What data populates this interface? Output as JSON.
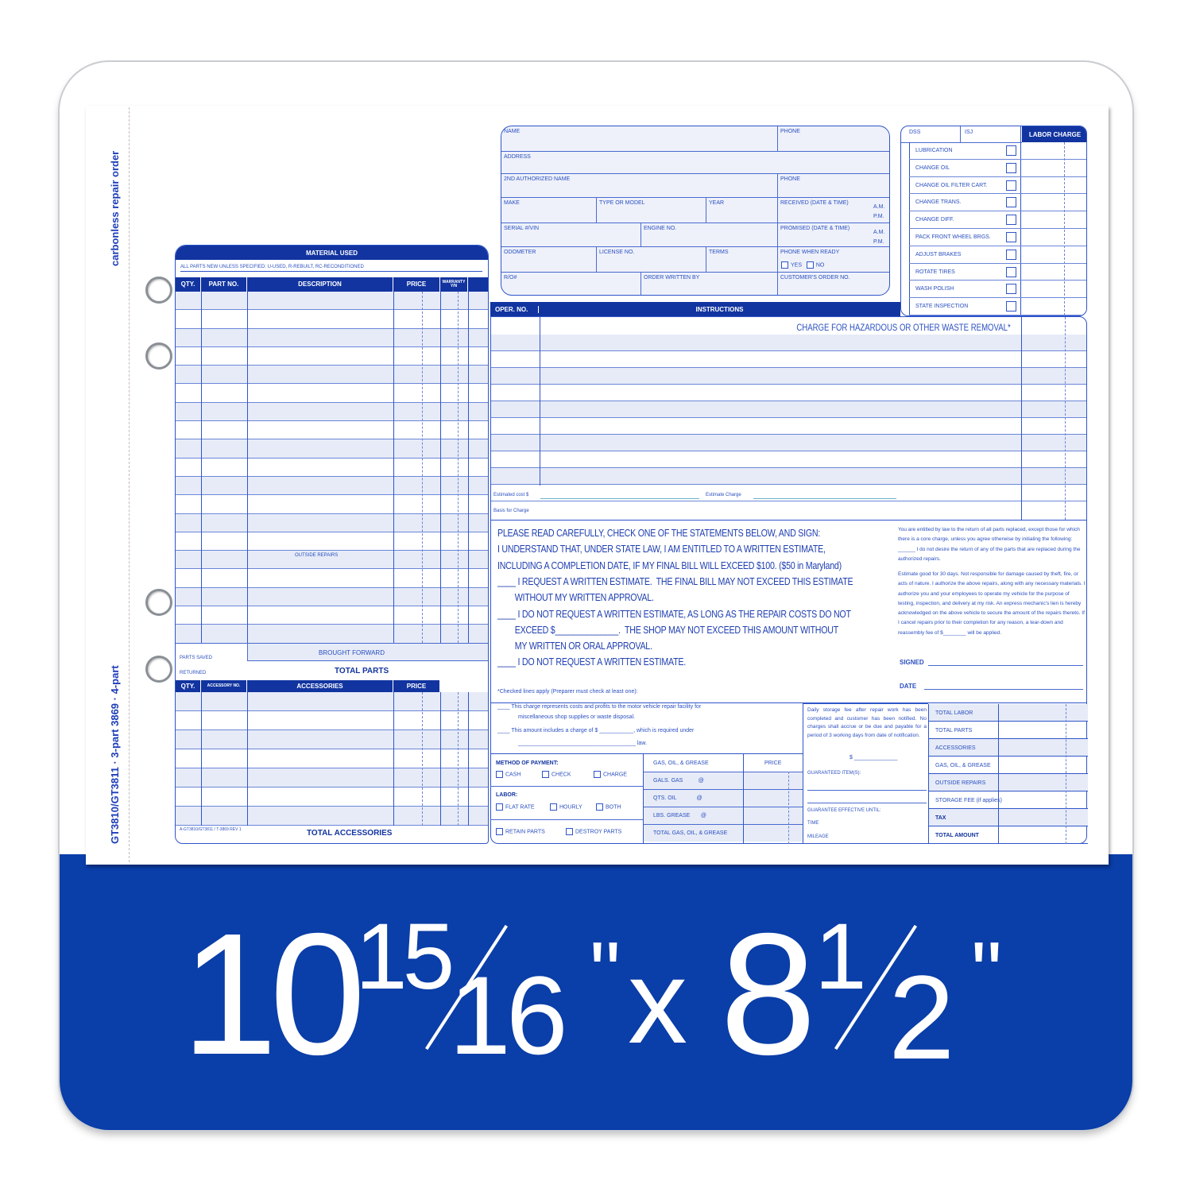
{
  "side_labels": {
    "product": "carbonless repair order",
    "codes": "GT3810/GT3811 · 3-part    3869 · 4-part"
  },
  "customer": {
    "name": "NAME",
    "phone": "PHONE",
    "address": "ADDRESS",
    "second_name": "2ND AUTHORIZED NAME",
    "phone2": "PHONE",
    "make": "MAKE",
    "model": "TYPE OR MODEL",
    "year": "YEAR",
    "received": "RECEIVED (DATE & TIME)",
    "am": "A.M.",
    "pm": "P.M.",
    "serial": "SERIAL #/VIN",
    "engine": "ENGINE NO.",
    "promised": "PROMISED (DATE & TIME)",
    "odometer": "ODOMETER",
    "license": "LICENSE NO.",
    "terms": "TERMS",
    "phone_ready": "PHONE WHEN READY",
    "yes": "YES",
    "no": "NO",
    "ro": "R/O#",
    "written_by": "ORDER WRITTEN BY",
    "customer_order": "CUSTOMER'S ORDER NO."
  },
  "checklist": {
    "top_left": "DSS",
    "top_right": "ISJ",
    "labor_charge": "LABOR CHARGE",
    "items": [
      "LUBRICATION",
      "CHANGE OIL",
      "CHANGE OIL FILTER CART.",
      "CHANGE TRANS.",
      "CHANGE DIFF.",
      "PACK FRONT WHEEL BRGS.",
      "ADJUST BRAKES",
      "ROTATE TIRES",
      "WASH POLISH",
      "STATE INSPECTION"
    ]
  },
  "material": {
    "title": "MATERIAL USED",
    "note": "ALL PARTS NEW UNLESS SPECIFIED: U-USED, R-REBUILT, RC-RECONDITIONED",
    "columns": [
      "QTY.",
      "PART NO.",
      "DESCRIPTION",
      "PRICE",
      "WARRANTY Y/N"
    ],
    "outside_repairs": "OUTSIDE REPAIRS",
    "parts_saved": "PARTS SAVED",
    "returned": "RETURNED",
    "brought_forward": "BROUGHT FORWARD",
    "total_parts": "TOTAL PARTS",
    "acc_columns": [
      "QTY.",
      "ACCESSORY NO.",
      "ACCESSORIES",
      "PRICE"
    ],
    "footnote": "A-GT3810/GT3811 / T-3869 REV 1",
    "total_accessories": "TOTAL ACCESSORIES"
  },
  "instructions": {
    "oper_no": "OPER. NO.",
    "title": "INSTRUCTIONS",
    "hazard": "CHARGE FOR HAZARDOUS OR OTHER WASTE REMOVAL*",
    "estimated_cost": "Estimated cost $",
    "estimate_charge": "Estimate Charge",
    "basis": "Basis for Charge"
  },
  "statement": {
    "lines": [
      "PLEASE READ CAREFULLY, CHECK ONE OF THE STATEMENTS BELOW, AND SIGN:",
      "I UNDERSTAND THAT, UNDER STATE LAW, I AM ENTITLED TO A WRITTEN ESTIMATE,",
      "INCLUDING A COMPLETION DATE, IF MY FINAL BILL WILL EXCEED $100. ($50 in Maryland)",
      "____ I REQUEST A WRITTEN ESTIMATE.  THE FINAL BILL MAY NOT EXCEED THIS ESTIMATE",
      "        WITHOUT MY WRITTEN APPROVAL.",
      "____ I DO NOT REQUEST A WRITTEN ESTIMATE, AS LONG AS THE REPAIR COSTS DO NOT",
      "        EXCEED $______________.  THE SHOP MAY NOT EXCEED THIS AMOUNT WITHOUT",
      "        MY WRITTEN OR ORAL APPROVAL.",
      "____ I DO NOT REQUEST A WRITTEN ESTIMATE."
    ],
    "right_p1": "You are entitled by law to the return of all parts replaced, except those for which there is a core charge, unless you agree otherwise by initialing the following: ______ I do not desire the return of any of the parts that are replaced during the authorized repairs.",
    "right_p2": "Estimate good for 30 days. Not responsible for damage caused by theft, fire, or acts of nature. I authorize the above repairs, along with any necessary materials. I authorize you and your employees to operate my vehicle for the purpose of testing, inspection, and delivery at my risk. An express mechanic's lien is hereby acknowledged on the above vehicle to secure the amount of the repairs thereto. If I cancel repairs prior to their completion for any reason, a tear-down and reassembly fee of $________ will be applied.",
    "signed": "SIGNED",
    "date": "DATE"
  },
  "checked_lines": {
    "intro": "*Checked lines apply (Preparer must check at least one):",
    "l1": "____  This charge represents costs and profits to the motor vehicle repair facility for",
    "l1b": "miscellaneous shop supplies or waste disposal.",
    "l2": "____  This amount includes a charge of $ ___________, which is required under",
    "l2b": "______________________________________ law."
  },
  "payment": {
    "method": "METHOD OF PAYMENT:",
    "cash": "CASH",
    "check": "CHECK",
    "charge": "CHARGE",
    "labor": "LABOR:",
    "flat": "FLAT RATE",
    "hourly": "HOURLY",
    "both": "BOTH",
    "retain": "RETAIN PARTS",
    "destroy": "DESTROY PARTS"
  },
  "gas": {
    "title": "GAS, OIL, & GREASE",
    "price": "PRICE",
    "rows": [
      "GALS. GAS          @",
      "QTS. OIL             @",
      "LBS. GREASE       @",
      "TOTAL GAS, OIL, & GREASE"
    ]
  },
  "storage": {
    "text": "Daily storage fee after repair work has been completed and customer has been notified. No charges shall accrue or be due and payable for a period of 3 working days from date of notification.",
    "dollar": "$ ______________",
    "guarantee": "GUARANTEED ITEM(S):",
    "effective": "GUARANTEE EFFECTIVE UNTIL:",
    "time": "TIME",
    "mileage": "MILEAGE"
  },
  "totals": [
    "TOTAL LABOR",
    "TOTAL PARTS",
    "ACCESSORIES",
    "GAS, OIL, & GREASE",
    "OUTSIDE REPAIRS",
    "STORAGE FEE (if applies)",
    "TAX",
    "TOTAL AMOUNT"
  ],
  "size": {
    "whole1": "10",
    "num1": "15",
    "den1": "16",
    "inch": "\"",
    "x": "x",
    "whole2": "8",
    "num2": "1",
    "den2": "2"
  },
  "colors": {
    "band": "#0a3ea8",
    "form_header": "#1234a0",
    "form_row": "#e6ebf7"
  }
}
